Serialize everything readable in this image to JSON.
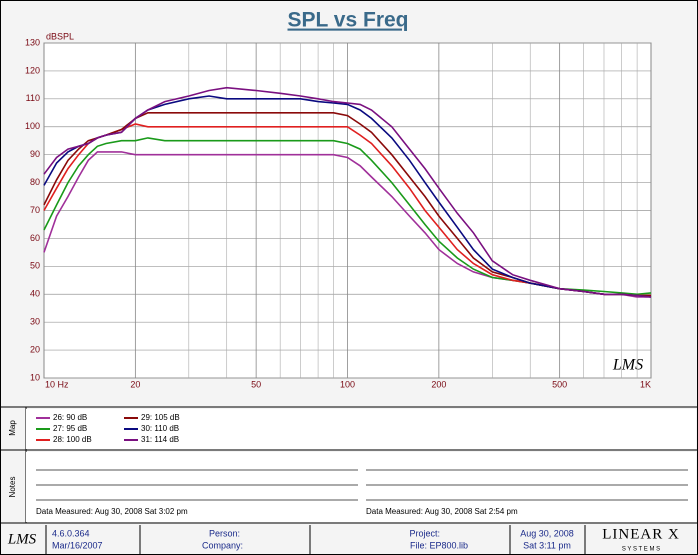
{
  "chart_data": {
    "type": "line",
    "title": "SPL vs Freq",
    "ylabel": "dBSPL",
    "logx": true,
    "grid": true,
    "xlim": [
      10,
      1000
    ],
    "ylim": [
      10,
      130
    ],
    "xticks": [
      {
        "value": 10,
        "label": "10 Hz"
      },
      20,
      50,
      100,
      200,
      500,
      {
        "value": 1000,
        "label": "1K"
      }
    ],
    "xminorticks": [
      30,
      40,
      60,
      70,
      80,
      90,
      300,
      400,
      600,
      700,
      800,
      900
    ],
    "yticks": [
      10,
      20,
      30,
      40,
      50,
      60,
      70,
      80,
      90,
      100,
      110,
      120,
      130
    ],
    "x": [
      10,
      11,
      12,
      13,
      14,
      15,
      16,
      18,
      20,
      22,
      25,
      30,
      35,
      40,
      50,
      60,
      70,
      80,
      90,
      100,
      110,
      120,
      140,
      160,
      180,
      200,
      230,
      260,
      300,
      350,
      400,
      500,
      600,
      700,
      800,
      900,
      1000
    ],
    "series": [
      {
        "name": "26: 90 dB",
        "color": "#a0309a",
        "values": [
          55,
          68,
          75,
          82,
          88,
          91,
          91,
          91,
          90,
          90,
          90,
          90,
          90,
          90,
          90,
          90,
          90,
          90,
          90,
          89,
          86,
          82,
          75,
          68,
          62,
          56,
          51,
          48,
          46,
          45,
          44,
          42,
          41,
          40,
          40,
          39,
          39
        ]
      },
      {
        "name": "27: 95 dB",
        "color": "#1a9a1a",
        "values": [
          63,
          72,
          80,
          86,
          90,
          93,
          94,
          95,
          95,
          96,
          95,
          95,
          95,
          95,
          95,
          95,
          95,
          95,
          95,
          94,
          92,
          88,
          80,
          72,
          65,
          59,
          53,
          49,
          46,
          45,
          44,
          42,
          41.5,
          41,
          40.5,
          40,
          40.5
        ]
      },
      {
        "name": "28: 100 dB",
        "color": "#e02020",
        "values": [
          70,
          78,
          85,
          90,
          94,
          96,
          97,
          99,
          101,
          100,
          100,
          100,
          100,
          100,
          100,
          100,
          100,
          100,
          100,
          100,
          97,
          94,
          86,
          78,
          70,
          64,
          56,
          51,
          47,
          45,
          44,
          42,
          41,
          40,
          40,
          39.5,
          39.5
        ]
      },
      {
        "name": "29: 105 dB",
        "color": "#8a0a0a",
        "values": [
          72,
          81,
          88,
          92,
          95,
          96,
          97,
          99,
          103,
          105,
          105,
          105,
          105,
          105,
          105,
          105,
          105,
          105,
          105,
          104,
          101,
          98,
          90,
          82,
          75,
          68,
          60,
          53,
          48,
          46,
          44,
          42,
          41,
          40,
          40,
          39.5,
          39.5
        ]
      },
      {
        "name": "30: 110 dB",
        "color": "#0a0a80",
        "values": [
          79,
          87,
          91,
          93,
          94,
          96,
          97,
          98,
          103,
          106,
          108,
          110,
          111,
          110,
          110,
          110,
          110,
          109,
          108.5,
          108,
          106,
          103,
          96,
          88,
          80,
          73,
          64,
          56,
          49,
          46,
          44,
          42,
          41,
          40,
          40,
          39.5,
          39
        ]
      },
      {
        "name": "31: 114 dB",
        "color": "#7a1080",
        "values": [
          83,
          89,
          92,
          93,
          94,
          96,
          97,
          98,
          103,
          106,
          109,
          111,
          113,
          114,
          113,
          112,
          111,
          110,
          109,
          108.5,
          108,
          106,
          100,
          92,
          85,
          78,
          69,
          62,
          52,
          47,
          45,
          42,
          41,
          40,
          40,
          39.5,
          39
        ]
      }
    ]
  },
  "watermark": "LMS",
  "map_label": "Map",
  "notes_label": "Notes",
  "notes": [
    "Data Measured: Aug 30, 2008  Sat  3:02 pm",
    "Data Measured: Aug 30, 2008  Sat  2:54 pm"
  ],
  "footer": {
    "logo": "LMS",
    "version": "4.6.0.364",
    "version_date": "Mar/16/2007",
    "person": "Person:",
    "company": "Company:",
    "project": "Project:",
    "file": "File: EP800.lib",
    "date": "Aug 30, 2008",
    "time": "Sat  3:11 pm",
    "brand": "LINEAR X",
    "brand_sub": "S Y S T E M S"
  }
}
